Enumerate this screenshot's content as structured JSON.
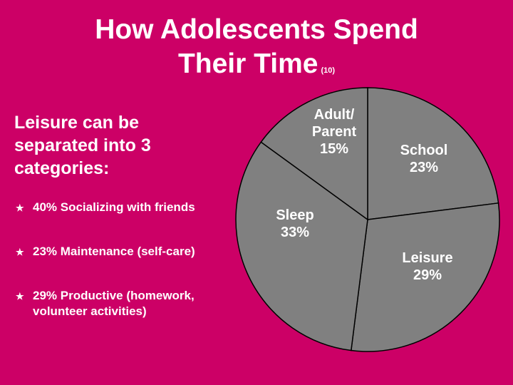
{
  "title": {
    "line1": "How Adolescents Spend",
    "line2": "Their Time",
    "ref": "(10)"
  },
  "left": {
    "heading": "Leisure can be separated into 3 categories:",
    "bullets": [
      {
        "symbol": "★",
        "text": "40% Socializing with friends"
      },
      {
        "symbol": "★",
        "text": "23% Maintenance (self-care)"
      },
      {
        "symbol": "★",
        "text": "29% Productive (homework, volunteer activities)"
      }
    ]
  },
  "colors": {
    "background": "#cc0066",
    "slice_fill": "#808080",
    "text": "#ffffff"
  },
  "chart_data": {
    "type": "pie",
    "slices": [
      {
        "label_lines": [
          "School",
          "23%"
        ],
        "value": 23
      },
      {
        "label_lines": [
          "Leisure",
          "29%"
        ],
        "value": 29
      },
      {
        "label_lines": [
          "Sleep",
          "33%"
        ],
        "value": 33
      },
      {
        "label_lines": [
          "Adult/",
          "Parent",
          "15%"
        ],
        "value": 15
      }
    ]
  }
}
